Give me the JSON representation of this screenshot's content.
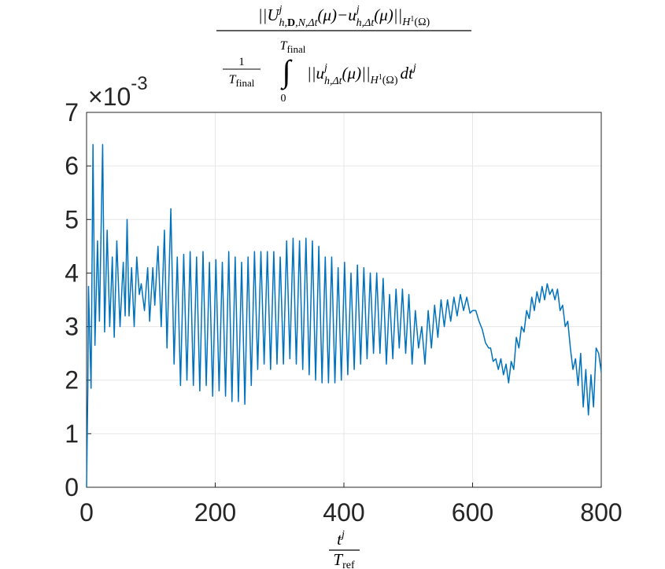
{
  "chart_data": {
    "type": "line",
    "title": {
      "numerator": [
        "||U",
        "j",
        "h,",
        "D",
        ",N,Δt",
        "(μ)−u",
        "j",
        "h,Δt",
        "(μ)||",
        "H",
        "1",
        "(Ω)"
      ],
      "denominator": {
        "fraction_top": "1",
        "fraction_bottom": [
          "T",
          "final"
        ],
        "integral": "∫",
        "upper": [
          "T",
          "final"
        ],
        "lower": "0",
        "integrand": [
          "||u",
          "j",
          "h,Δt",
          "(μ)||",
          "H",
          "1",
          "(Ω)",
          "dt",
          "j"
        ]
      }
    },
    "xlabel": {
      "top": [
        "t",
        "j"
      ],
      "bottom": [
        "T",
        "ref"
      ]
    },
    "y_multiplier": [
      "×10",
      "-3"
    ],
    "color": "#0072bd",
    "grid": true,
    "xlim": [
      0,
      800
    ],
    "xticks": [
      0,
      200,
      400,
      600,
      800
    ],
    "ylim": [
      0,
      7
    ],
    "yticks": [
      0,
      1,
      2,
      3,
      4,
      5,
      6,
      7
    ],
    "x": [
      0,
      2,
      3,
      7,
      10,
      13,
      17,
      20,
      25,
      28,
      32,
      36,
      40,
      43,
      47,
      52,
      57,
      60,
      63,
      66,
      70,
      74,
      78,
      82,
      85,
      90,
      95,
      98,
      103,
      106,
      111,
      116,
      121,
      125,
      131,
      136,
      141,
      146,
      151,
      156,
      161,
      166,
      171,
      176,
      181,
      186,
      191,
      196,
      201,
      206,
      211,
      216,
      221,
      226,
      231,
      236,
      241,
      246,
      251,
      256,
      261,
      266,
      271,
      276,
      281,
      286,
      291,
      296,
      301,
      306,
      311,
      316,
      321,
      326,
      331,
      336,
      341,
      346,
      351,
      356,
      361,
      366,
      371,
      376,
      381,
      386,
      391,
      396,
      401,
      406,
      411,
      416,
      421,
      426,
      431,
      436,
      441,
      446,
      451,
      456,
      461,
      466,
      471,
      476,
      481,
      486,
      491,
      496,
      501,
      506,
      511,
      516,
      521,
      526,
      531,
      536,
      541,
      546,
      551,
      556,
      561,
      566,
      571,
      576,
      581,
      586,
      591,
      596,
      600,
      605,
      610,
      615,
      620,
      625,
      628,
      632,
      636,
      640,
      644,
      648,
      652,
      656,
      660,
      664,
      668,
      672,
      676,
      680,
      684,
      688,
      692,
      696,
      700,
      704,
      708,
      712,
      716,
      720,
      724,
      728,
      732,
      736,
      740,
      744,
      748,
      752,
      756,
      760,
      764,
      768,
      772,
      776,
      780,
      784,
      788,
      792,
      796,
      800
    ],
    "values": [
      0,
      1.9,
      3.75,
      1.85,
      6.4,
      2.65,
      4.6,
      3.1,
      6.4,
      2.9,
      4.8,
      3.0,
      4.3,
      2.8,
      4.6,
      3.0,
      4.2,
      3.2,
      5.0,
      3.2,
      4.1,
      3.0,
      4.3,
      3.6,
      3.8,
      3.3,
      4.1,
      3.1,
      4.1,
      3.4,
      4.5,
      3.0,
      4.8,
      2.6,
      5.2,
      2.3,
      4.3,
      1.9,
      4.35,
      2.0,
      4.4,
      1.9,
      4.3,
      1.8,
      4.4,
      1.9,
      4.2,
      1.7,
      4.25,
      1.8,
      4.2,
      1.7,
      4.4,
      1.6,
      4.3,
      1.6,
      4.2,
      1.55,
      4.3,
      1.9,
      4.4,
      2.2,
      4.4,
      2.3,
      4.4,
      2.2,
      4.4,
      2.3,
      4.3,
      2.3,
      4.6,
      2.4,
      4.65,
      2.3,
      4.6,
      2.2,
      4.65,
      2.1,
      4.6,
      2.0,
      4.5,
      1.95,
      4.3,
      1.95,
      4.3,
      1.95,
      4.1,
      2.0,
      4.2,
      2.1,
      4.0,
      2.2,
      4.15,
      2.3,
      4.1,
      2.4,
      4.0,
      2.5,
      4.0,
      2.5,
      3.9,
      2.3,
      3.6,
      2.4,
      3.7,
      2.6,
      3.7,
      2.5,
      3.6,
      2.3,
      3.3,
      2.6,
      3.0,
      2.3,
      3.3,
      2.6,
      3.4,
      2.8,
      3.5,
      3.0,
      3.5,
      3.1,
      3.55,
      3.2,
      3.6,
      3.3,
      3.55,
      3.25,
      3.3,
      3.3,
      3.1,
      2.95,
      2.7,
      2.6,
      2.6,
      2.35,
      2.4,
      2.2,
      2.4,
      2.1,
      2.3,
      1.95,
      2.35,
      2.2,
      2.8,
      2.6,
      3.0,
      2.9,
      3.3,
      3.15,
      3.55,
      3.3,
      3.65,
      3.45,
      3.75,
      3.5,
      3.8,
      3.6,
      3.7,
      3.5,
      3.7,
      3.3,
      3.4,
      3.0,
      3.1,
      2.6,
      2.2,
      2.4,
      1.9,
      2.5,
      1.5,
      2.2,
      1.35,
      2.1,
      1.5,
      2.6,
      2.5,
      2.15
    ]
  }
}
